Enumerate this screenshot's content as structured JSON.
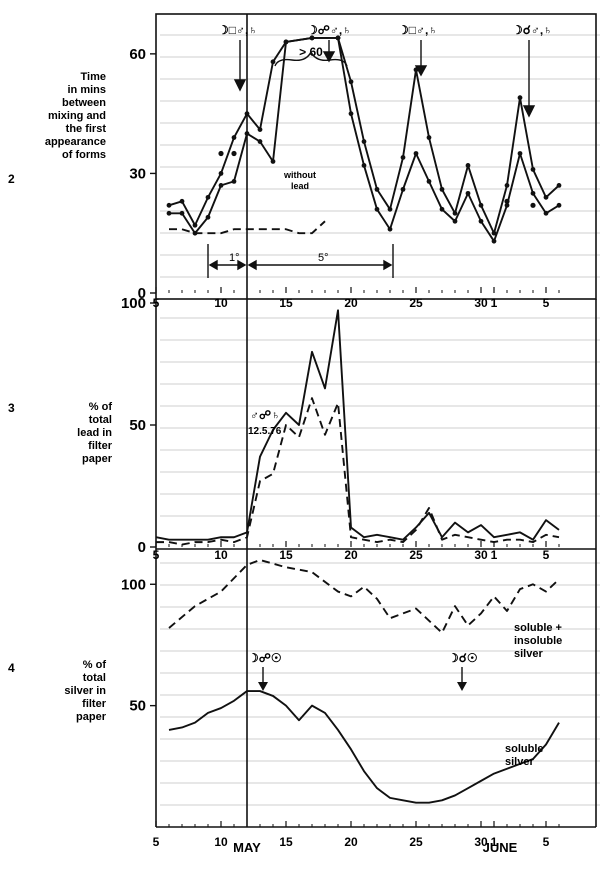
{
  "chart_data": [
    {
      "type": "line",
      "panel_number": "2",
      "ylabel": [
        "Time",
        "in mins",
        "between",
        "mixing and",
        "the first",
        "appearance",
        "of forms"
      ],
      "ylim": [
        0,
        70
      ],
      "yticks": [
        0,
        30,
        60
      ],
      "x_start_day": 5,
      "series": [
        {
          "name": "",
          "style": "solid-markers",
          "x": [
            6,
            7,
            8,
            9,
            10,
            11,
            12,
            13,
            14,
            15,
            17,
            19,
            20,
            21,
            22,
            23,
            24,
            25,
            26,
            27,
            28,
            29,
            30,
            31,
            32,
            33,
            34,
            35,
            36
          ],
          "values": [
            22,
            23,
            17,
            24,
            30,
            39,
            45,
            41,
            58,
            63,
            64,
            64,
            53,
            38,
            26,
            21,
            34,
            56,
            39,
            26,
            20,
            32,
            22,
            15,
            27,
            49,
            31,
            24,
            27
          ]
        },
        {
          "name": "",
          "style": "solid-markers",
          "x": [
            6,
            7,
            8,
            9,
            10,
            11,
            12,
            13,
            14,
            15,
            17,
            19,
            20,
            21,
            22,
            23,
            24,
            25,
            26,
            27,
            28,
            29,
            30,
            31,
            32,
            33,
            34,
            35,
            36
          ],
          "values": [
            20,
            20,
            15,
            19,
            27,
            28,
            40,
            38,
            33,
            63,
            64,
            64,
            45,
            32,
            21,
            16,
            26,
            35,
            28,
            21,
            18,
            25,
            18,
            13,
            22,
            35,
            25,
            20,
            22
          ]
        },
        {
          "name": "without lead",
          "style": "dashed",
          "x": [
            6,
            7,
            8,
            9,
            10,
            11,
            12,
            13,
            14,
            15,
            16,
            17,
            18
          ],
          "values": [
            16,
            16,
            15,
            15,
            15,
            16,
            16,
            16,
            16,
            16,
            15,
            15,
            18
          ]
        },
        {
          "name": "",
          "style": "dots",
          "x": [
            10,
            11,
            32,
            34
          ],
          "values": [
            35,
            35,
            23,
            22
          ]
        }
      ],
      "annotations": [
        {
          "text": "☽□♂,♄",
          "x": 12
        },
        {
          "text": "☽☍♂,♄",
          "x": 19
        },
        {
          "text": "☽□♂,♄",
          "x": 25
        },
        {
          "text": "☽☌♂,♄",
          "x": 33
        },
        {
          "text": "> 60"
        },
        {
          "text": "without lead"
        },
        {
          "text": "1°"
        },
        {
          "text": "5°"
        }
      ]
    },
    {
      "type": "line",
      "panel_number": "3",
      "ylabel": [
        "% of",
        "total",
        "lead in",
        "filter",
        "paper"
      ],
      "ylim": [
        0,
        100
      ],
      "yticks": [
        0,
        50,
        100
      ],
      "series": [
        {
          "name": "",
          "style": "solid",
          "x": [
            5,
            6,
            7,
            8,
            9,
            10,
            11,
            12,
            13,
            14,
            15,
            16,
            17,
            18,
            19,
            20,
            21,
            22,
            23,
            24,
            25,
            26,
            27,
            28,
            29,
            30,
            31,
            32,
            33,
            34,
            35,
            36
          ],
          "values": [
            4,
            3,
            3,
            3,
            3,
            4,
            4,
            6,
            37,
            48,
            55,
            50,
            80,
            65,
            97,
            8,
            4,
            5,
            4,
            3,
            8,
            14,
            4,
            10,
            6,
            9,
            4,
            5,
            6,
            3,
            11,
            7
          ]
        },
        {
          "name": "",
          "style": "dashed",
          "x": [
            5,
            6,
            7,
            8,
            9,
            10,
            11,
            12,
            13,
            14,
            15,
            16,
            17,
            18,
            19,
            20,
            21,
            22,
            23,
            24,
            25,
            26,
            27,
            28,
            29,
            30,
            31,
            32,
            33,
            34,
            35,
            36
          ],
          "values": [
            2,
            2,
            1,
            2,
            2,
            3,
            2,
            4,
            27,
            30,
            50,
            45,
            61,
            46,
            59,
            4,
            3,
            2,
            3,
            2,
            7,
            16,
            3,
            5,
            4,
            3,
            2,
            3,
            3,
            2,
            5,
            4
          ]
        }
      ],
      "annotations": [
        {
          "text": "♂☍♄",
          "x": 12
        },
        {
          "text": "12.5.76",
          "x": 12
        }
      ]
    },
    {
      "type": "line",
      "panel_number": "4",
      "ylabel": [
        "% of",
        "total",
        "silver in",
        "filter",
        "paper"
      ],
      "ylim": [
        0,
        110
      ],
      "yticks": [
        50,
        100
      ],
      "series": [
        {
          "name": "soluble + insoluble silver",
          "style": "dashed",
          "x": [
            6,
            8,
            10,
            12,
            13,
            15,
            17,
            19,
            20,
            21,
            22,
            23,
            24,
            25,
            26,
            27,
            28,
            29,
            30,
            31,
            32,
            33,
            34,
            35,
            36
          ],
          "values": [
            82,
            91,
            97,
            108,
            110,
            107,
            105,
            97,
            95,
            99,
            94,
            86,
            88,
            90,
            85,
            80,
            91,
            83,
            88,
            95,
            89,
            98,
            100,
            97,
            102
          ]
        },
        {
          "name": "soluble silver",
          "style": "solid",
          "x": [
            6,
            7,
            8,
            9,
            10,
            11,
            12,
            13,
            14,
            15,
            16,
            17,
            18,
            19,
            20,
            21,
            22,
            23,
            24,
            25,
            26,
            27,
            28,
            29,
            30,
            31,
            32,
            33,
            34,
            35,
            36
          ],
          "values": [
            40,
            41,
            43,
            47,
            49,
            52,
            56,
            56,
            54,
            50,
            44,
            50,
            47,
            40,
            32,
            23,
            16,
            12,
            11,
            10,
            10,
            11,
            13,
            16,
            19,
            22,
            24,
            26,
            28,
            34,
            43
          ]
        }
      ],
      "annotations": [
        {
          "text": "☽☍☉",
          "x": 13
        },
        {
          "text": "☽☌☉",
          "x": 28
        },
        {
          "text": "soluble +"
        },
        {
          "text": "insoluble"
        },
        {
          "text": "silver"
        },
        {
          "text": "soluble"
        },
        {
          "text": "silver"
        }
      ]
    }
  ],
  "x_axis": {
    "tick_day_indices": [
      5,
      10,
      15,
      20,
      25,
      30,
      31,
      35
    ],
    "tick_labels": [
      "5",
      "10",
      "15",
      "20",
      "25",
      "30",
      "1",
      "5"
    ],
    "month_labels": [
      "MAY",
      "JUNE"
    ],
    "reference_day": 12
  }
}
